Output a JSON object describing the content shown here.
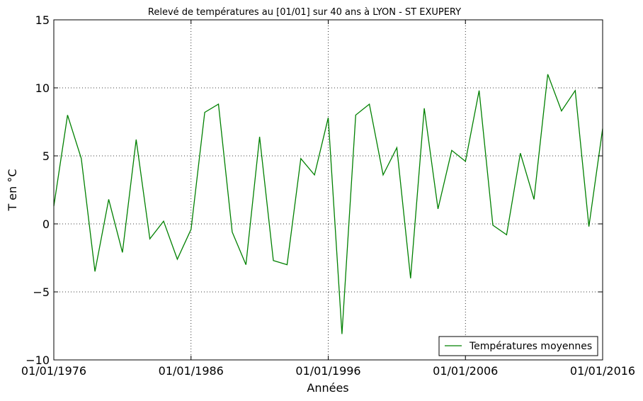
{
  "chart_data": {
    "type": "line",
    "title": "Relevé de températures au [01/01] sur 40 ans à LYON - ST EXUPERY",
    "xlabel": "Années",
    "ylabel": "T en °C",
    "ylim": [
      -10,
      15
    ],
    "xlim": [
      1976,
      2016
    ],
    "x_ticks": [
      1976,
      1986,
      1996,
      2006,
      2016
    ],
    "x_tick_labels": [
      "01/01/1976",
      "01/01/1986",
      "01/01/1996",
      "01/01/2006",
      "01/01/2016"
    ],
    "y_ticks": [
      -10,
      -5,
      0,
      5,
      10,
      15
    ],
    "y_tick_labels": [
      "−10",
      "−5",
      "0",
      "5",
      "10",
      "15"
    ],
    "grid": true,
    "legend_position": "bottom-right",
    "series": [
      {
        "name": "Températures moyennes",
        "color": "#008000",
        "x": [
          1976,
          1977,
          1978,
          1979,
          1980,
          1981,
          1982,
          1983,
          1984,
          1985,
          1986,
          1987,
          1988,
          1989,
          1990,
          1991,
          1992,
          1993,
          1994,
          1995,
          1996,
          1997,
          1998,
          1999,
          2000,
          2001,
          2002,
          2003,
          2004,
          2005,
          2006,
          2007,
          2008,
          2009,
          2010,
          2011,
          2012,
          2013,
          2014,
          2015,
          2016
        ],
        "values": [
          1.3,
          8.0,
          4.8,
          -3.5,
          1.8,
          -2.1,
          6.2,
          -1.1,
          0.2,
          -2.6,
          -0.4,
          8.2,
          8.8,
          -0.6,
          -3.0,
          6.4,
          -2.7,
          -3.0,
          4.8,
          3.6,
          7.8,
          -8.1,
          8.0,
          8.8,
          3.6,
          5.6,
          -4.0,
          8.5,
          1.1,
          5.4,
          4.6,
          9.8,
          -0.1,
          -0.8,
          5.2,
          1.8,
          11.0,
          8.3,
          9.8,
          -0.2,
          7.0
        ]
      }
    ]
  }
}
